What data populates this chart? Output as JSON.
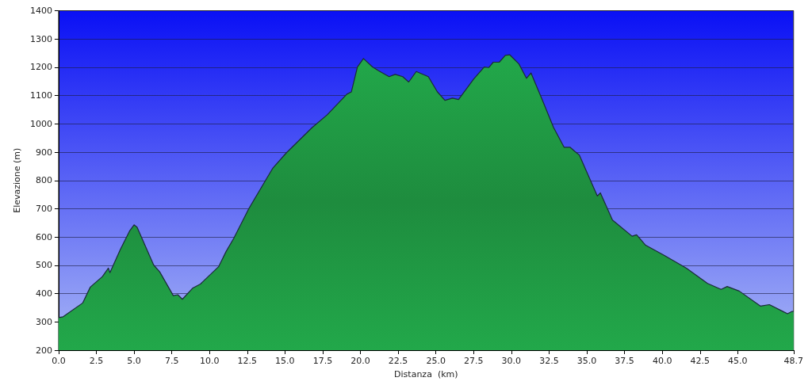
{
  "chart_data": {
    "type": "area",
    "xlabel": "Distanza  (km)",
    "ylabel": "Elevazione (m)",
    "xlim": [
      0,
      48.7
    ],
    "xticks": [
      {
        "value": 0,
        "label": "0.0"
      },
      {
        "value": 2.5,
        "label": "2.5"
      },
      {
        "value": 5,
        "label": "5.0"
      },
      {
        "value": 7.5,
        "label": "7.5"
      },
      {
        "value": 10,
        "label": "10.0"
      },
      {
        "value": 12.5,
        "label": "12.5"
      },
      {
        "value": 15,
        "label": "15.0"
      },
      {
        "value": 17.5,
        "label": "17.5"
      },
      {
        "value": 20,
        "label": "20.0"
      },
      {
        "value": 22.5,
        "label": "22.5"
      },
      {
        "value": 25,
        "label": "25.0"
      },
      {
        "value": 27.5,
        "label": "27.5"
      },
      {
        "value": 30,
        "label": "30.0"
      },
      {
        "value": 32.5,
        "label": "32.5"
      },
      {
        "value": 35,
        "label": "35.0"
      },
      {
        "value": 37.5,
        "label": "37.5"
      },
      {
        "value": 40,
        "label": "40.0"
      },
      {
        "value": 42.5,
        "label": "42.5"
      },
      {
        "value": 45,
        "label": "45.0"
      },
      {
        "value": 48.7,
        "label": "48.7"
      }
    ],
    "ylim": [
      200,
      1400
    ],
    "yticks": [
      200,
      300,
      400,
      500,
      600,
      700,
      800,
      900,
      1000,
      1100,
      1200,
      1300,
      1400
    ],
    "grid": "y",
    "marker": "none",
    "line_style": "solid",
    "series": [
      {
        "color": "#22a84a",
        "x": [
          0,
          0.3,
          1.6,
          2.1,
          2.9,
          3.3,
          3.4,
          4.1,
          4.7,
          5.0,
          5.2,
          6.3,
          6.7,
          7.6,
          7.9,
          8.2,
          8.9,
          9.4,
          10.6,
          11.1,
          11.6,
          12.6,
          14.2,
          15.1,
          16.8,
          17.8,
          19.1,
          19.4,
          19.8,
          20.2,
          20.8,
          21.2,
          21.9,
          22.3,
          22.8,
          23.2,
          23.7,
          24.5,
          25.1,
          25.6,
          26.1,
          26.5,
          27.5,
          28.2,
          28.5,
          28.8,
          29.2,
          29.6,
          29.9,
          30.5,
          31.0,
          31.3,
          32.0,
          32.8,
          33.5,
          33.9,
          34.2,
          34.5,
          35.7,
          35.9,
          36.7,
          38.0,
          38.3,
          38.9,
          40.1,
          41.6,
          43.0,
          43.9,
          44.3,
          45.1,
          46.5,
          47.1,
          48.1,
          48.3,
          48.6,
          48.7
        ],
        "values": [
          315,
          318,
          367,
          423,
          460,
          490,
          474,
          557,
          621,
          643,
          635,
          501,
          477,
          393,
          396,
          380,
          420,
          434,
          495,
          549,
          595,
          700,
          844,
          898,
          987,
          1032,
          1105,
          1113,
          1201,
          1231,
          1201,
          1188,
          1167,
          1175,
          1167,
          1148,
          1185,
          1167,
          1113,
          1083,
          1091,
          1086,
          1158,
          1201,
          1199,
          1218,
          1218,
          1242,
          1244,
          1212,
          1161,
          1180,
          1091,
          987,
          917,
          917,
          903,
          890,
          745,
          756,
          660,
          603,
          608,
          571,
          536,
          490,
          436,
          415,
          425,
          409,
          356,
          361,
          334,
          329,
          337,
          337
        ]
      }
    ]
  }
}
